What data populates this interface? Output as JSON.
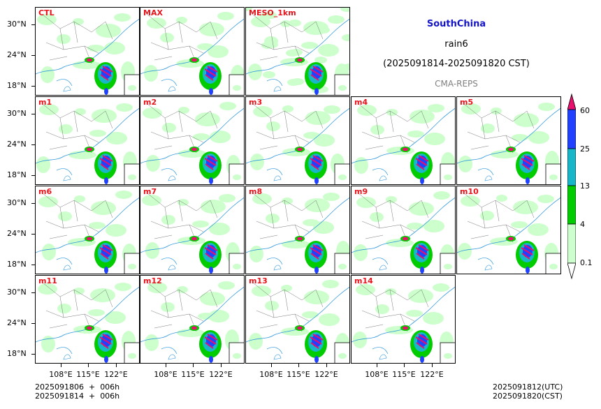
{
  "header": {
    "region": "SouthChina",
    "variable": "rain6",
    "period": "(2025091814-2025091820 CST)",
    "model": "CMA-REPS",
    "region_color": "#1414c8",
    "model_color": "#808080"
  },
  "panels": [
    {
      "label": "CTL"
    },
    {
      "label": "MAX"
    },
    {
      "label": "MESO_1km"
    },
    {
      "label": "m1"
    },
    {
      "label": "m2"
    },
    {
      "label": "m3"
    },
    {
      "label": "m4"
    },
    {
      "label": "m5"
    },
    {
      "label": "m6"
    },
    {
      "label": "m7"
    },
    {
      "label": "m8"
    },
    {
      "label": "m9"
    },
    {
      "label": "m10"
    },
    {
      "label": "m11"
    },
    {
      "label": "m12"
    },
    {
      "label": "m13"
    },
    {
      "label": "m14"
    }
  ],
  "axes": {
    "lat_ticks": [
      "30°N",
      "24°N",
      "18°N"
    ],
    "lon_ticks": [
      "108°E",
      "115°E",
      "122°E"
    ]
  },
  "colorbar": {
    "levels": [
      "0.1",
      "4",
      "13",
      "25",
      "60"
    ],
    "colors": [
      "#ccffcc",
      "#00cc00",
      "#17b7c9",
      "#2041ff",
      "#e8106c"
    ]
  },
  "footer": {
    "left_line1": "2025091806  +  006h",
    "left_line2": "2025091814  +  006h",
    "right_line1": "2025091812(UTC)",
    "right_line2": "2025091820(CST)"
  }
}
